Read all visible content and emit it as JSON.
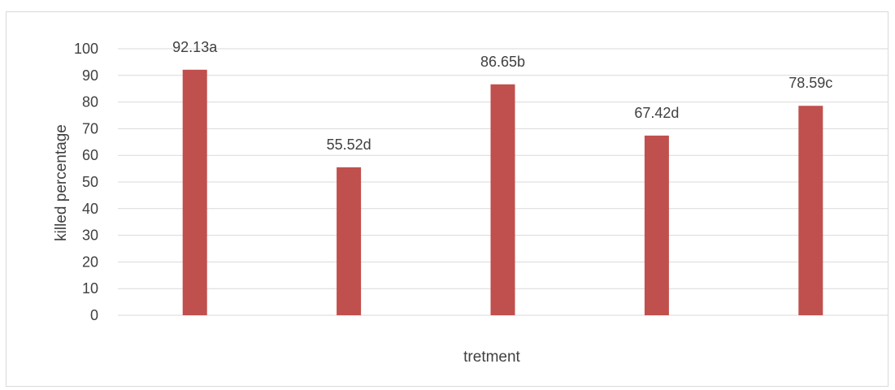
{
  "chart_data": {
    "type": "bar",
    "categories": [
      "",
      "",
      "",
      "",
      ""
    ],
    "values": [
      92.13,
      55.52,
      86.65,
      67.42,
      78.59
    ],
    "data_labels": [
      "92.13a",
      "55.52d",
      "86.65b",
      "67.42d",
      "78.59c"
    ],
    "title": "",
    "xlabel": "tretment",
    "ylabel": "killed percentage",
    "ylim": [
      0,
      100
    ],
    "yticks": [
      0,
      10,
      20,
      30,
      40,
      50,
      60,
      70,
      80,
      90,
      100
    ],
    "grid": true,
    "legend": "none",
    "colors": {
      "bar": "#c0504d",
      "grid": "#d9d9d9",
      "text": "#404040"
    }
  }
}
